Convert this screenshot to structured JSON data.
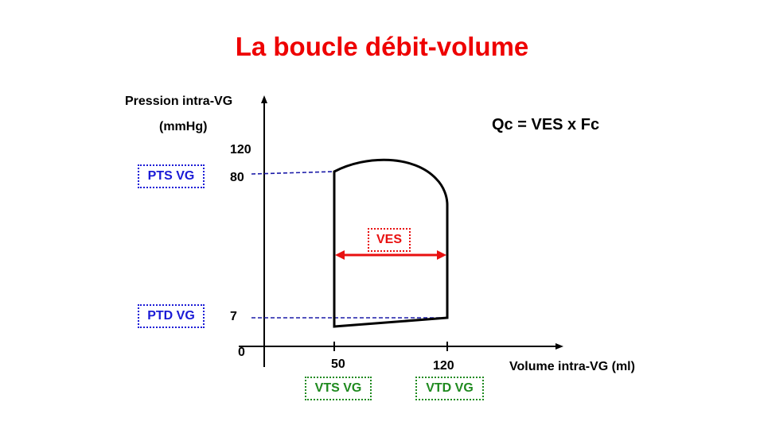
{
  "title": "La boucle débit-volume",
  "formula": "Qc = VES x Fc",
  "y_axis": {
    "label_line1": "Pression intra-VG",
    "label_line2": "(mmHg)",
    "ticks": [
      "120",
      "80",
      "7"
    ],
    "origin": "0"
  },
  "x_axis": {
    "label": "Volume intra-VG (ml)",
    "ticks": [
      "50",
      "120"
    ]
  },
  "boxes": {
    "pts": "PTS VG",
    "ptd": "PTD VG",
    "ves": "VES",
    "vts": "VTS VG",
    "vtd": "VTD VG"
  },
  "colors": {
    "title": "#ee0000",
    "blue": "#1a1ad6",
    "green": "#1f8a1f",
    "red": "#e81010",
    "dashed": "#1a1aa8"
  }
}
